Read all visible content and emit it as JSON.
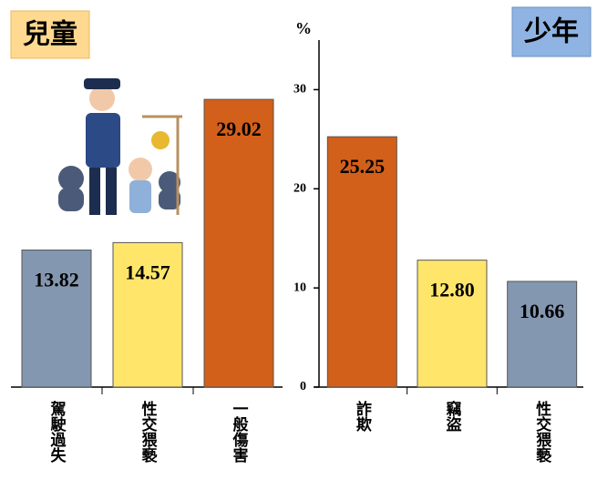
{
  "chart_data": [
    {
      "type": "bar",
      "title": "兒童",
      "y_label": "%",
      "categories": [
        "駕駛過失",
        "性交猥褻",
        "一般傷害"
      ],
      "values": [
        13.82,
        14.57,
        29.02
      ],
      "value_labels": [
        "13.82",
        "14.57",
        "29.02"
      ],
      "colors": [
        "#8497b0",
        "#ffe66b",
        "#d2601a"
      ],
      "ylim": [
        0,
        35
      ],
      "yticks": [
        0,
        10,
        20,
        30
      ]
    },
    {
      "type": "bar",
      "title": "少年",
      "categories": [
        "詐欺",
        "竊盜",
        "性交猥褻"
      ],
      "values": [
        25.25,
        12.8,
        10.66
      ],
      "value_labels": [
        "25.25",
        "12.80",
        "10.66"
      ],
      "colors": [
        "#d2601a",
        "#ffe66b",
        "#8497b0"
      ],
      "ylim": [
        0,
        35
      ]
    }
  ]
}
